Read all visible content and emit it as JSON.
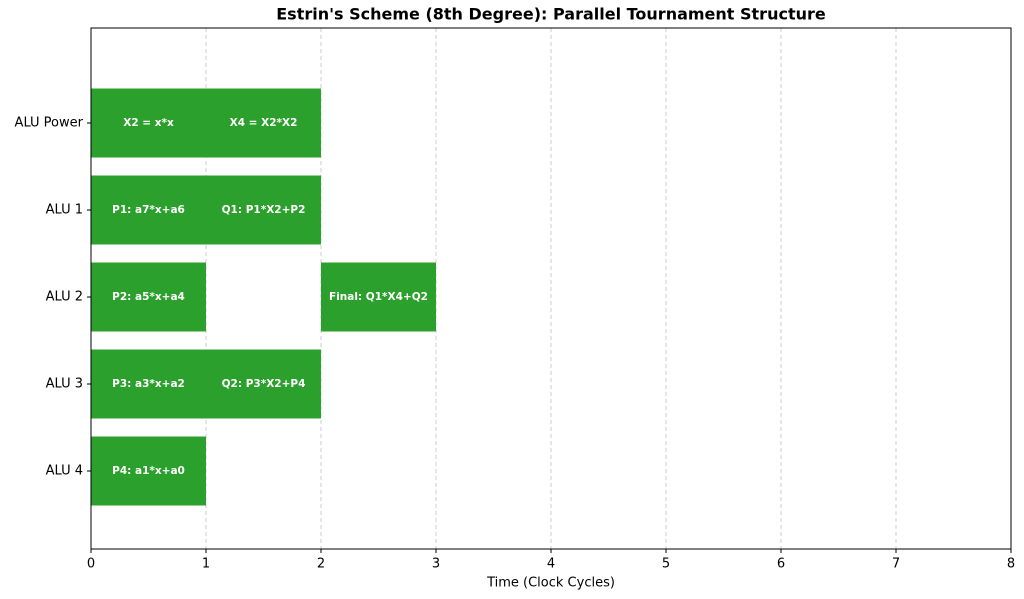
{
  "chart_data": {
    "type": "gantt",
    "title": "Estrin's Scheme (8th Degree): Parallel Tournament Structure",
    "x_label": "Time (Clock Cycles)",
    "categories": [
      "ALU Power",
      "ALU 1",
      "ALU 2",
      "ALU 3",
      "ALU 4"
    ],
    "tasks": [
      {
        "row": "ALU Power",
        "label": "X2 = x*x",
        "start": 0,
        "end": 1
      },
      {
        "row": "ALU Power",
        "label": "X4 = X2*X2",
        "start": 1,
        "end": 2
      },
      {
        "row": "ALU 1",
        "label": "P1: a7*x+a6",
        "start": 0,
        "end": 1
      },
      {
        "row": "ALU 1",
        "label": "Q1: P1*X2+P2",
        "start": 1,
        "end": 2
      },
      {
        "row": "ALU 2",
        "label": "P2: a5*x+a4",
        "start": 0,
        "end": 1
      },
      {
        "row": "ALU 2",
        "label": "Final: Q1*X4+Q2",
        "start": 2,
        "end": 3
      },
      {
        "row": "ALU 3",
        "label": "P3: a3*x+a2",
        "start": 0,
        "end": 1
      },
      {
        "row": "ALU 3",
        "label": "Q2: P3*X2+P4",
        "start": 1,
        "end": 2
      },
      {
        "row": "ALU 4",
        "label": "P4: a1*x+a0",
        "start": 0,
        "end": 1
      }
    ],
    "color": "#2ca02c",
    "xlim": [
      0,
      8
    ],
    "xticks": [
      0,
      1,
      2,
      3,
      4,
      5,
      6,
      7,
      8
    ],
    "grid": true
  }
}
